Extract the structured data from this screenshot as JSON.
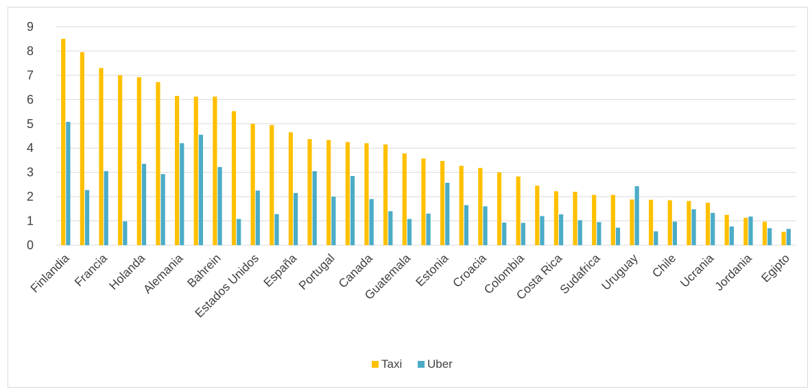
{
  "chart_data": {
    "type": "bar",
    "title": "",
    "xlabel": "",
    "ylabel": "",
    "ylim": [
      0,
      9
    ],
    "yticks": [
      0,
      1,
      2,
      3,
      4,
      5,
      6,
      7,
      8,
      9
    ],
    "grid": true,
    "legend_position": "bottom",
    "categories": [
      "Finlandia",
      "",
      "Francia",
      "",
      "Holanda",
      "",
      "Alemania",
      "",
      "Bahrein",
      "",
      "Estados Unidos",
      "",
      "España",
      "",
      "Portugal",
      "",
      "Canada",
      "",
      "Guatemala",
      "",
      "Estonia",
      "",
      "Croacia",
      "",
      "Colombia",
      "",
      "Costa Rica",
      "",
      "Sudafrica",
      "",
      "Uruguay",
      "",
      "Chile",
      "",
      "Ucrania",
      "",
      "Jordania",
      "",
      "Egipto"
    ],
    "series": [
      {
        "name": "Taxi",
        "color": "#ffc000",
        "values": [
          8.5,
          7.95,
          7.3,
          7.0,
          6.92,
          6.72,
          6.15,
          6.12,
          6.12,
          5.52,
          5.0,
          4.95,
          4.65,
          4.37,
          4.33,
          4.25,
          4.2,
          4.15,
          3.78,
          3.57,
          3.47,
          3.27,
          3.18,
          3.0,
          2.83,
          2.45,
          2.22,
          2.2,
          2.07,
          2.07,
          1.88,
          1.87,
          1.85,
          1.82,
          1.75,
          1.25,
          1.13,
          0.97,
          0.55
        ]
      },
      {
        "name": "Uber",
        "color": "#4bacc6",
        "values": [
          5.08,
          2.27,
          3.05,
          0.98,
          3.35,
          2.93,
          4.2,
          4.55,
          3.22,
          1.08,
          2.25,
          1.28,
          2.15,
          3.05,
          2.0,
          2.85,
          1.9,
          1.4,
          1.08,
          1.3,
          2.57,
          1.65,
          1.6,
          0.93,
          0.92,
          1.2,
          1.27,
          1.03,
          0.95,
          0.72,
          2.43,
          0.57,
          0.97,
          1.48,
          1.33,
          0.77,
          1.18,
          0.7,
          0.67
        ]
      }
    ]
  }
}
